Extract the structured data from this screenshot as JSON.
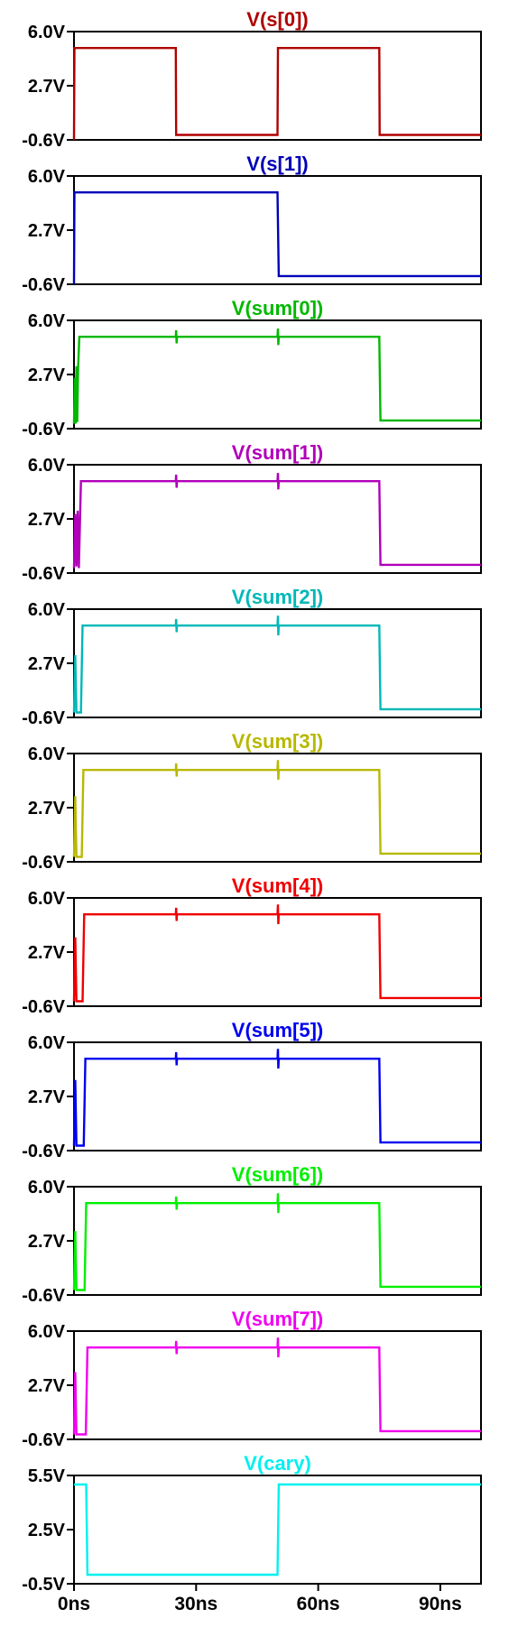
{
  "chart_data": {
    "type": "line",
    "x_unit": "ns",
    "xlim": [
      0,
      100
    ],
    "x_ticks": [
      {
        "value": 0,
        "label": "0ns"
      },
      {
        "value": 30,
        "label": "30ns"
      },
      {
        "value": 60,
        "label": "60ns"
      },
      {
        "value": 90,
        "label": "90ns"
      }
    ],
    "panels": [
      {
        "title": "V(s[0])",
        "color": "#b00000",
        "ylim": [
          -0.6,
          6.0
        ],
        "y_ticks": [
          "6.0V",
          "2.7V",
          "-0.6V"
        ],
        "points": [
          [
            0,
            -0.6
          ],
          [
            0.1,
            5.0
          ],
          [
            25,
            5.0
          ],
          [
            25.1,
            -0.3
          ],
          [
            50,
            -0.3
          ],
          [
            50.1,
            5.0
          ],
          [
            75,
            5.0
          ],
          [
            75.1,
            -0.3
          ],
          [
            100,
            -0.3
          ]
        ]
      },
      {
        "title": "V(s[1])",
        "color": "#0000b8",
        "ylim": [
          -0.6,
          6.0
        ],
        "y_ticks": [
          "6.0V",
          "2.7V",
          "-0.6V"
        ],
        "points": [
          [
            0,
            -0.6
          ],
          [
            0.1,
            5.0
          ],
          [
            50,
            5.0
          ],
          [
            50.3,
            -0.1
          ],
          [
            100,
            -0.1
          ]
        ]
      },
      {
        "title": "V(sum[0])",
        "color": "#00b800",
        "ylim": [
          -0.6,
          6.0
        ],
        "y_ticks": [
          "6.0V",
          "2.7V",
          "-0.6V"
        ],
        "points": [
          [
            0,
            -0.3
          ],
          [
            0.2,
            2.5
          ],
          [
            0.4,
            -0.3
          ],
          [
            0.6,
            3.2
          ],
          [
            0.8,
            -0.2
          ],
          [
            1,
            3.0
          ],
          [
            1.3,
            5.0
          ],
          [
            25,
            5.0
          ],
          [
            25.1,
            5.4
          ],
          [
            25.2,
            4.6
          ],
          [
            25.3,
            5.0
          ],
          [
            50,
            5.0
          ],
          [
            50.1,
            5.5
          ],
          [
            50.2,
            4.5
          ],
          [
            50.3,
            5.0
          ],
          [
            75,
            5.0
          ],
          [
            75.3,
            -0.1
          ],
          [
            100,
            -0.1
          ]
        ]
      },
      {
        "title": "V(sum[1])",
        "color": "#b000b8",
        "ylim": [
          -0.6,
          6.0
        ],
        "y_ticks": [
          "6.0V",
          "2.7V",
          "-0.6V"
        ],
        "points": [
          [
            0,
            -0.3
          ],
          [
            0.3,
            3.0
          ],
          [
            0.6,
            -0.2
          ],
          [
            0.9,
            3.2
          ],
          [
            1.2,
            -0.3
          ],
          [
            1.7,
            5.0
          ],
          [
            25,
            5.0
          ],
          [
            25.1,
            5.4
          ],
          [
            25.2,
            4.6
          ],
          [
            25.3,
            5.0
          ],
          [
            50,
            5.0
          ],
          [
            50.1,
            5.5
          ],
          [
            50.2,
            4.5
          ],
          [
            50.3,
            5.0
          ],
          [
            75,
            5.0
          ],
          [
            75.3,
            -0.1
          ],
          [
            100,
            -0.1
          ]
        ]
      },
      {
        "title": "V(sum[2])",
        "color": "#00b8b8",
        "ylim": [
          -0.6,
          6.0
        ],
        "y_ticks": [
          "6.0V",
          "2.7V",
          "-0.6V"
        ],
        "points": [
          [
            0,
            -0.3
          ],
          [
            0.3,
            3.2
          ],
          [
            0.6,
            -0.3
          ],
          [
            1.7,
            -0.3
          ],
          [
            2.1,
            5.0
          ],
          [
            25,
            5.0
          ],
          [
            25.1,
            5.4
          ],
          [
            25.2,
            4.6
          ],
          [
            25.3,
            5.0
          ],
          [
            50,
            5.0
          ],
          [
            50.1,
            5.6
          ],
          [
            50.2,
            4.4
          ],
          [
            50.3,
            5.0
          ],
          [
            75,
            5.0
          ],
          [
            75.3,
            -0.1
          ],
          [
            100,
            -0.1
          ]
        ]
      },
      {
        "title": "V(sum[3])",
        "color": "#b8b800",
        "ylim": [
          -0.6,
          6.0
        ],
        "y_ticks": [
          "6.0V",
          "2.7V",
          "-0.6V"
        ],
        "points": [
          [
            0,
            -0.3
          ],
          [
            0.3,
            3.4
          ],
          [
            0.6,
            -0.3
          ],
          [
            1.9,
            -0.3
          ],
          [
            2.3,
            5.0
          ],
          [
            25,
            5.0
          ],
          [
            25.1,
            5.4
          ],
          [
            25.2,
            4.6
          ],
          [
            25.3,
            5.0
          ],
          [
            50,
            5.0
          ],
          [
            50.1,
            5.6
          ],
          [
            50.2,
            4.4
          ],
          [
            50.3,
            5.0
          ],
          [
            75,
            5.0
          ],
          [
            75.3,
            -0.1
          ],
          [
            100,
            -0.1
          ]
        ]
      },
      {
        "title": "V(sum[4])",
        "color": "#f00000",
        "ylim": [
          -0.6,
          6.0
        ],
        "y_ticks": [
          "6.0V",
          "2.7V",
          "-0.6V"
        ],
        "points": [
          [
            0,
            -0.3
          ],
          [
            0.3,
            3.6
          ],
          [
            0.6,
            -0.3
          ],
          [
            2.1,
            -0.3
          ],
          [
            2.5,
            5.0
          ],
          [
            25,
            5.0
          ],
          [
            25.1,
            5.4
          ],
          [
            25.2,
            4.6
          ],
          [
            25.3,
            5.0
          ],
          [
            50,
            5.0
          ],
          [
            50.1,
            5.6
          ],
          [
            50.2,
            4.4
          ],
          [
            50.3,
            5.0
          ],
          [
            75,
            5.0
          ],
          [
            75.3,
            -0.1
          ],
          [
            100,
            -0.1
          ]
        ]
      },
      {
        "title": "V(sum[5])",
        "color": "#0000f0",
        "ylim": [
          -0.6,
          6.0
        ],
        "y_ticks": [
          "6.0V",
          "2.7V",
          "-0.6V"
        ],
        "points": [
          [
            0,
            -0.3
          ],
          [
            0.3,
            3.7
          ],
          [
            0.6,
            -0.3
          ],
          [
            2.4,
            -0.3
          ],
          [
            2.8,
            5.0
          ],
          [
            25,
            5.0
          ],
          [
            25.1,
            5.4
          ],
          [
            25.2,
            4.6
          ],
          [
            25.3,
            5.0
          ],
          [
            50,
            5.0
          ],
          [
            50.1,
            5.6
          ],
          [
            50.2,
            4.4
          ],
          [
            50.3,
            5.0
          ],
          [
            75,
            5.0
          ],
          [
            75.3,
            -0.1
          ],
          [
            100,
            -0.1
          ]
        ]
      },
      {
        "title": "V(sum[6])",
        "color": "#00f000",
        "ylim": [
          -0.6,
          6.0
        ],
        "y_ticks": [
          "6.0V",
          "2.7V",
          "-0.6V"
        ],
        "points": [
          [
            0,
            -0.3
          ],
          [
            0.3,
            3.3
          ],
          [
            0.6,
            -0.3
          ],
          [
            2.6,
            -0.3
          ],
          [
            3.0,
            5.0
          ],
          [
            25,
            5.0
          ],
          [
            25.1,
            5.4
          ],
          [
            25.2,
            4.6
          ],
          [
            25.3,
            5.0
          ],
          [
            50,
            5.0
          ],
          [
            50.1,
            5.6
          ],
          [
            50.2,
            4.4
          ],
          [
            50.3,
            5.0
          ],
          [
            75,
            5.0
          ],
          [
            75.3,
            -0.1
          ],
          [
            100,
            -0.1
          ]
        ]
      },
      {
        "title": "V(sum[7])",
        "color": "#f000f0",
        "ylim": [
          -0.6,
          6.0
        ],
        "y_ticks": [
          "6.0V",
          "2.7V",
          "-0.6V"
        ],
        "points": [
          [
            0,
            -0.3
          ],
          [
            0.3,
            3.5
          ],
          [
            0.6,
            -0.3
          ],
          [
            2.9,
            -0.3
          ],
          [
            3.3,
            5.0
          ],
          [
            25,
            5.0
          ],
          [
            25.1,
            5.4
          ],
          [
            25.2,
            4.6
          ],
          [
            25.3,
            5.0
          ],
          [
            50,
            5.0
          ],
          [
            50.1,
            5.6
          ],
          [
            50.2,
            4.4
          ],
          [
            50.3,
            5.0
          ],
          [
            75,
            5.0
          ],
          [
            75.3,
            -0.1
          ],
          [
            100,
            -0.1
          ]
        ]
      },
      {
        "title": "V(cary)",
        "color": "#00f0f0",
        "ylim": [
          -0.5,
          5.5
        ],
        "y_ticks": [
          "5.5V",
          "2.5V",
          "-0.5V"
        ],
        "points": [
          [
            0,
            5.0
          ],
          [
            3,
            5.0
          ],
          [
            3.3,
            0
          ],
          [
            50,
            0
          ],
          [
            50.3,
            5.0
          ],
          [
            100,
            5.0
          ]
        ]
      }
    ]
  }
}
